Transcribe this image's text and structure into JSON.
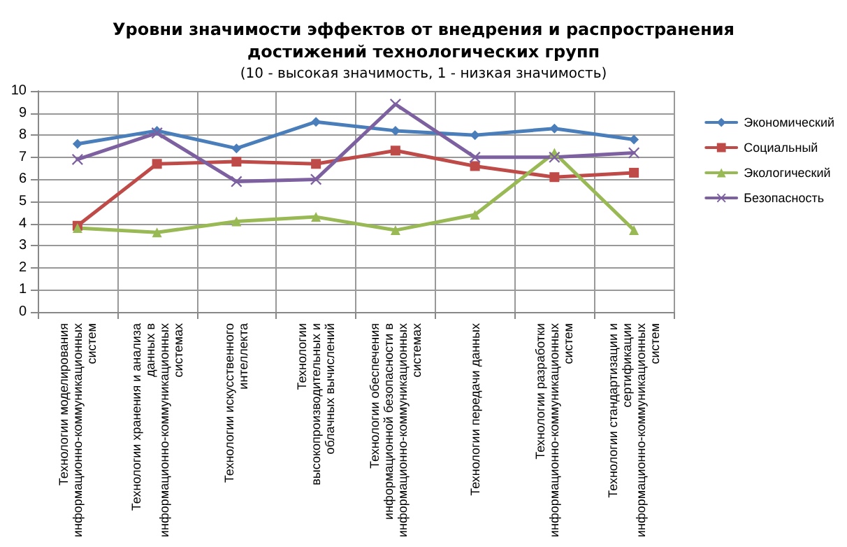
{
  "chart_data": {
    "type": "line",
    "title": "Уровни значимости эффектов от внедрения и распространения достижений технологических групп",
    "subtitle": "(10 - высокая значимость, 1 - низкая значимость)",
    "categories": [
      "Технологии моделирования информационно-коммуникационных систем",
      "Технологии хранения и анализа данных в информационно-коммуникационных системах",
      "Технологии искусственного интеллекта",
      "Технологии высокопроизводительных и облачных вычислений",
      "Технологии обеспечения информационной безопасности в информационно-коммуникационных системах",
      "Технологии передачи данных",
      "Технологии разработки информационно-коммуникационных систем",
      "Технологии стандартизации и сертификации информационно-коммуникационных систем"
    ],
    "series": [
      {
        "name": "Экономический",
        "color": "#4a7ebb",
        "marker": "diamond",
        "values": [
          7.6,
          8.2,
          7.4,
          8.6,
          8.2,
          8.0,
          8.3,
          7.8
        ]
      },
      {
        "name": "Социальный",
        "color": "#be4b48",
        "marker": "square",
        "values": [
          3.9,
          6.7,
          6.8,
          6.7,
          7.3,
          6.6,
          6.1,
          6.3
        ]
      },
      {
        "name": "Экологический",
        "color": "#98b954",
        "marker": "triangle",
        "values": [
          3.8,
          3.6,
          4.1,
          4.3,
          3.7,
          4.4,
          7.2,
          3.7
        ]
      },
      {
        "name": "Безопасность",
        "color": "#7d60a0",
        "marker": "cross",
        "values": [
          6.9,
          8.1,
          5.9,
          6.0,
          9.4,
          7.0,
          7.0,
          7.2
        ]
      }
    ],
    "ylim": [
      0,
      10
    ],
    "yticks": [
      0,
      1,
      2,
      3,
      4,
      5,
      6,
      7,
      8,
      9,
      10
    ],
    "grid": true,
    "legend": "right"
  }
}
